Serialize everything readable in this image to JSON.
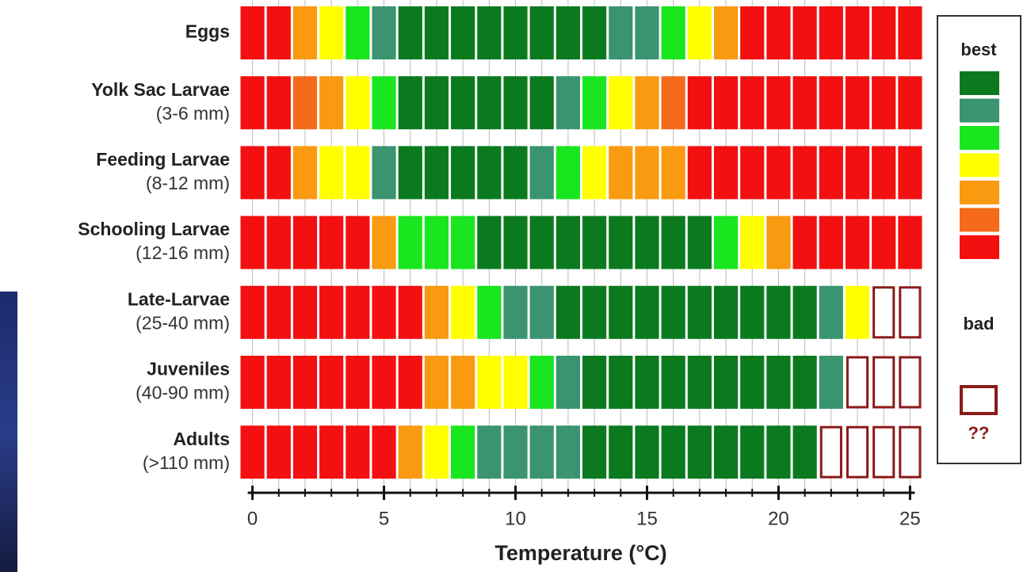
{
  "chart_data": {
    "type": "heatmap",
    "x_label": "Temperature (°C)",
    "x": [
      0,
      1,
      2,
      3,
      4,
      5,
      6,
      7,
      8,
      9,
      10,
      11,
      12,
      13,
      14,
      15,
      16,
      17,
      18,
      19,
      20,
      21,
      22,
      23,
      24,
      25
    ],
    "xlim": [
      -0.5,
      25.5
    ],
    "xticks": [
      0,
      5,
      10,
      15,
      20,
      25
    ],
    "colors": [
      "#0b7a1f",
      "#3a9470",
      "#19e61e",
      "#ffff00",
      "#f99a10",
      "#f46a1a",
      "#f21010"
    ],
    "unknown_color": "#8b1a1a",
    "legend": {
      "top": "best",
      "bottom": "bad",
      "unknown": "??"
    },
    "rows": [
      {
        "name": "Eggs",
        "values": [
          6,
          6,
          4,
          3,
          2,
          1,
          0,
          0,
          0,
          0,
          0,
          0,
          0,
          0,
          1,
          1,
          2,
          3,
          4,
          6,
          6,
          6,
          6,
          6,
          6,
          6
        ]
      },
      {
        "name": "Yolk Sac Larvae",
        "detail": "(3-6 mm)",
        "values": [
          6,
          6,
          5,
          4,
          3,
          2,
          0,
          0,
          0,
          0,
          0,
          0,
          1,
          2,
          3,
          4,
          5,
          6,
          6,
          6,
          6,
          6,
          6,
          6,
          6,
          6
        ]
      },
      {
        "name": "Feeding Larvae",
        "detail": "(8-12 mm)",
        "values": [
          6,
          6,
          4,
          3,
          3,
          1,
          0,
          0,
          0,
          0,
          0,
          1,
          2,
          3,
          4,
          4,
          4,
          6,
          6,
          6,
          6,
          6,
          6,
          6,
          6,
          6
        ]
      },
      {
        "name": "Schooling Larvae",
        "detail": "(12-16 mm)",
        "values": [
          6,
          6,
          6,
          6,
          6,
          4,
          2,
          2,
          2,
          0,
          0,
          0,
          0,
          0,
          0,
          0,
          0,
          0,
          2,
          3,
          4,
          6,
          6,
          6,
          6,
          6
        ]
      },
      {
        "name": "Late-Larvae",
        "detail": "(25-40 mm)",
        "values": [
          6,
          6,
          6,
          6,
          6,
          6,
          6,
          4,
          3,
          2,
          1,
          1,
          0,
          0,
          0,
          0,
          0,
          0,
          0,
          0,
          0,
          0,
          1,
          3,
          null,
          null
        ]
      },
      {
        "name": "Juveniles",
        "detail": "(40-90 mm)",
        "values": [
          6,
          6,
          6,
          6,
          6,
          6,
          6,
          4,
          4,
          3,
          3,
          2,
          1,
          0,
          0,
          0,
          0,
          0,
          0,
          0,
          0,
          0,
          1,
          null,
          null,
          null
        ]
      },
      {
        "name": "Adults",
        "detail": "(>110 mm)",
        "values": [
          6,
          6,
          6,
          6,
          6,
          6,
          4,
          3,
          2,
          1,
          1,
          1,
          1,
          0,
          0,
          0,
          0,
          0,
          0,
          0,
          0,
          0,
          null,
          null,
          null,
          null
        ]
      }
    ]
  }
}
